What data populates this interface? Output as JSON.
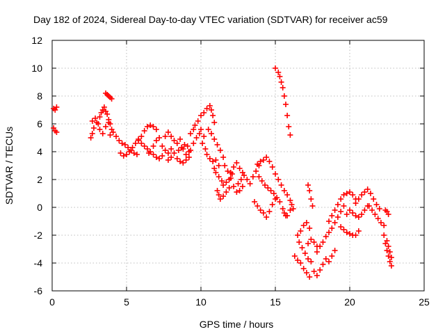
{
  "chart_data": {
    "type": "scatter",
    "title": "Day 182 of 2024, Sidereal Day-to-day VTEC variation (SDTVAR) for receiver ac59",
    "xlabel": "GPS time / hours",
    "ylabel": "SDTVAR / TECUs",
    "xlim": [
      0,
      25
    ],
    "ylim": [
      -6,
      12
    ],
    "xticks": [
      0,
      5,
      10,
      15,
      20,
      25
    ],
    "yticks": [
      -6,
      -4,
      -2,
      0,
      2,
      4,
      6,
      8,
      10,
      12
    ],
    "grid": true,
    "marker": "plus",
    "series": [
      {
        "name": "SDTVAR",
        "color": "#ff0000",
        "points": [
          [
            0.1,
            5.7
          ],
          [
            0.2,
            5.5
          ],
          [
            0.3,
            5.4
          ],
          [
            0.1,
            7.1
          ],
          [
            0.2,
            7.0
          ],
          [
            0.3,
            7.2
          ],
          [
            2.6,
            5.0
          ],
          [
            2.7,
            5.3
          ],
          [
            2.8,
            5.7
          ],
          [
            2.7,
            6.2
          ],
          [
            2.9,
            6.4
          ],
          [
            3.0,
            6.1
          ],
          [
            3.1,
            6.0
          ],
          [
            3.2,
            6.5
          ],
          [
            3.3,
            6.8
          ],
          [
            3.4,
            7.0
          ],
          [
            3.5,
            7.2
          ],
          [
            3.6,
            6.9
          ],
          [
            3.7,
            6.7
          ],
          [
            3.8,
            6.3
          ],
          [
            3.9,
            6.0
          ],
          [
            4.0,
            5.6
          ],
          [
            3.6,
            8.2
          ],
          [
            3.7,
            8.1
          ],
          [
            3.8,
            8.0
          ],
          [
            3.9,
            7.9
          ],
          [
            4.0,
            7.8
          ],
          [
            3.2,
            5.6
          ],
          [
            3.4,
            5.3
          ],
          [
            3.6,
            5.8
          ],
          [
            3.8,
            6.1
          ],
          [
            3.9,
            5.2
          ],
          [
            4.1,
            5.4
          ],
          [
            4.3,
            5.1
          ],
          [
            4.5,
            4.8
          ],
          [
            4.7,
            4.6
          ],
          [
            4.9,
            4.5
          ],
          [
            5.1,
            4.3
          ],
          [
            5.3,
            4.1
          ],
          [
            5.5,
            3.9
          ],
          [
            5.7,
            3.8
          ],
          [
            4.6,
            3.9
          ],
          [
            4.8,
            3.7
          ],
          [
            5.0,
            3.8
          ],
          [
            5.2,
            4.0
          ],
          [
            5.4,
            4.3
          ],
          [
            5.6,
            4.6
          ],
          [
            5.8,
            4.9
          ],
          [
            6.0,
            5.1
          ],
          [
            6.2,
            5.5
          ],
          [
            6.4,
            5.8
          ],
          [
            6.6,
            5.9
          ],
          [
            6.8,
            5.8
          ],
          [
            7.0,
            5.6
          ],
          [
            5.8,
            4.8
          ],
          [
            6.0,
            4.6
          ],
          [
            6.2,
            4.4
          ],
          [
            6.4,
            4.2
          ],
          [
            6.6,
            4.0
          ],
          [
            6.8,
            3.8
          ],
          [
            7.0,
            3.6
          ],
          [
            7.2,
            3.5
          ],
          [
            7.4,
            3.7
          ],
          [
            6.5,
            3.9
          ],
          [
            6.8,
            4.4
          ],
          [
            7.0,
            4.8
          ],
          [
            7.2,
            5.0
          ],
          [
            7.4,
            4.4
          ],
          [
            7.6,
            4.1
          ],
          [
            7.8,
            3.9
          ],
          [
            8.0,
            4.2
          ],
          [
            7.6,
            5.1
          ],
          [
            7.8,
            5.4
          ],
          [
            8.0,
            5.1
          ],
          [
            8.2,
            4.8
          ],
          [
            8.4,
            4.6
          ],
          [
            8.6,
            4.9
          ],
          [
            8.8,
            4.2
          ],
          [
            9.0,
            3.8
          ],
          [
            9.2,
            4.0
          ],
          [
            7.8,
            3.4
          ],
          [
            8.0,
            3.6
          ],
          [
            8.2,
            3.9
          ],
          [
            8.4,
            3.5
          ],
          [
            8.6,
            3.3
          ],
          [
            8.8,
            3.2
          ],
          [
            9.0,
            3.4
          ],
          [
            9.2,
            3.6
          ],
          [
            8.5,
            4.1
          ],
          [
            8.7,
            4.3
          ],
          [
            8.9,
            4.5
          ],
          [
            9.1,
            4.4
          ],
          [
            9.3,
            4.1
          ],
          [
            9.5,
            4.6
          ],
          [
            9.7,
            5.0
          ],
          [
            9.9,
            5.3
          ],
          [
            9.3,
            5.3
          ],
          [
            9.5,
            5.6
          ],
          [
            9.6,
            5.9
          ],
          [
            9.8,
            6.2
          ],
          [
            10.0,
            5.6
          ],
          [
            10.2,
            5.1
          ],
          [
            10.0,
            6.6
          ],
          [
            10.2,
            6.8
          ],
          [
            10.4,
            7.1
          ],
          [
            10.6,
            7.3
          ],
          [
            10.7,
            7.0
          ],
          [
            10.8,
            6.6
          ],
          [
            10.9,
            6.1
          ],
          [
            10.1,
            4.6
          ],
          [
            10.3,
            4.2
          ],
          [
            10.4,
            3.8
          ],
          [
            10.6,
            3.5
          ],
          [
            10.8,
            3.3
          ],
          [
            11.0,
            3.4
          ],
          [
            11.2,
            3.0
          ],
          [
            10.5,
            5.6
          ],
          [
            10.7,
            5.3
          ],
          [
            10.9,
            4.9
          ],
          [
            11.1,
            4.5
          ],
          [
            11.3,
            4.1
          ],
          [
            11.5,
            3.6
          ],
          [
            10.9,
            2.8
          ],
          [
            11.0,
            2.5
          ],
          [
            11.2,
            2.2
          ],
          [
            11.4,
            1.9
          ],
          [
            11.5,
            1.6
          ],
          [
            11.7,
            1.8
          ],
          [
            11.9,
            2.0
          ],
          [
            12.1,
            2.4
          ],
          [
            11.1,
            1.2
          ],
          [
            11.2,
            0.9
          ],
          [
            11.3,
            0.6
          ],
          [
            11.5,
            0.8
          ],
          [
            11.7,
            1.1
          ],
          [
            11.9,
            1.4
          ],
          [
            11.6,
            3.0
          ],
          [
            11.8,
            2.6
          ],
          [
            12.0,
            2.1
          ],
          [
            12.2,
            1.5
          ],
          [
            12.4,
            1.1
          ],
          [
            12.6,
            1.2
          ],
          [
            12.8,
            1.5
          ],
          [
            12.5,
            1.7
          ],
          [
            12.7,
            2.0
          ],
          [
            12.9,
            2.3
          ],
          [
            13.1,
            2.0
          ],
          [
            13.3,
            1.7
          ],
          [
            13.5,
            2.2
          ],
          [
            13.7,
            2.6
          ],
          [
            13.9,
            3.0
          ],
          [
            12.0,
            2.5
          ],
          [
            12.2,
            2.9
          ],
          [
            12.4,
            3.2
          ],
          [
            12.6,
            2.8
          ],
          [
            12.8,
            2.5
          ],
          [
            13.8,
            3.1
          ],
          [
            14.0,
            3.3
          ],
          [
            14.2,
            3.4
          ],
          [
            14.4,
            3.6
          ],
          [
            14.6,
            3.3
          ],
          [
            14.8,
            2.9
          ],
          [
            15.0,
            2.4
          ],
          [
            15.2,
            2.0
          ],
          [
            15.4,
            1.6
          ],
          [
            15.6,
            1.2
          ],
          [
            15.8,
            0.9
          ],
          [
            16.0,
            0.5
          ],
          [
            13.6,
            0.4
          ],
          [
            13.8,
            0.1
          ],
          [
            14.0,
            -0.2
          ],
          [
            14.2,
            -0.4
          ],
          [
            14.4,
            -0.7
          ],
          [
            14.6,
            -0.3
          ],
          [
            14.8,
            0.2
          ],
          [
            15.0,
            0.6
          ],
          [
            13.9,
            2.2
          ],
          [
            14.1,
            1.9
          ],
          [
            14.3,
            1.6
          ],
          [
            14.5,
            1.4
          ],
          [
            14.7,
            1.2
          ],
          [
            14.9,
            1.0
          ],
          [
            15.1,
            0.7
          ],
          [
            15.3,
            0.4
          ],
          [
            15.5,
            -0.1
          ],
          [
            15.7,
            -0.6
          ],
          [
            15.0,
            10.0
          ],
          [
            15.2,
            9.7
          ],
          [
            15.3,
            9.4
          ],
          [
            15.4,
            9.0
          ],
          [
            15.5,
            8.6
          ],
          [
            15.6,
            8.0
          ],
          [
            15.7,
            7.4
          ],
          [
            15.8,
            6.6
          ],
          [
            15.9,
            5.8
          ],
          [
            16.0,
            5.2
          ],
          [
            15.6,
            -0.4
          ],
          [
            15.8,
            -0.6
          ],
          [
            16.0,
            -0.2
          ],
          [
            16.1,
            0.2
          ],
          [
            16.2,
            -0.1
          ],
          [
            16.5,
            -2.0
          ],
          [
            16.7,
            -1.7
          ],
          [
            16.9,
            -1.3
          ],
          [
            17.1,
            -1.1
          ],
          [
            17.3,
            -1.5
          ],
          [
            16.3,
            -3.5
          ],
          [
            16.5,
            -3.8
          ],
          [
            16.7,
            -4.0
          ],
          [
            16.9,
            -4.4
          ],
          [
            17.1,
            -4.7
          ],
          [
            17.3,
            -5.0
          ],
          [
            16.6,
            -2.5
          ],
          [
            16.8,
            -2.9
          ],
          [
            17.0,
            -3.3
          ],
          [
            17.2,
            -3.7
          ],
          [
            17.4,
            -3.9
          ],
          [
            17.2,
            -2.6
          ],
          [
            17.4,
            -2.3
          ],
          [
            17.6,
            -2.5
          ],
          [
            17.8,
            -2.8
          ],
          [
            17.2,
            1.6
          ],
          [
            17.3,
            1.2
          ],
          [
            17.4,
            0.6
          ],
          [
            17.5,
            0.1
          ],
          [
            17.6,
            -4.6
          ],
          [
            17.8,
            -4.9
          ],
          [
            18.0,
            -4.5
          ],
          [
            18.2,
            -4.1
          ],
          [
            18.4,
            -3.7
          ],
          [
            18.6,
            -3.9
          ],
          [
            18.8,
            -3.5
          ],
          [
            19.0,
            -3.1
          ],
          [
            17.8,
            -3.2
          ],
          [
            18.0,
            -2.8
          ],
          [
            18.2,
            -2.5
          ],
          [
            18.4,
            -2.1
          ],
          [
            18.6,
            -1.8
          ],
          [
            18.8,
            -1.5
          ],
          [
            19.0,
            -1.1
          ],
          [
            19.2,
            -0.7
          ],
          [
            19.4,
            -0.3
          ],
          [
            19.6,
            0.1
          ],
          [
            18.6,
            -1.0
          ],
          [
            18.8,
            -0.6
          ],
          [
            19.0,
            -0.2
          ],
          [
            19.2,
            0.2
          ],
          [
            19.4,
            0.6
          ],
          [
            19.6,
            0.9
          ],
          [
            19.8,
            1.0
          ],
          [
            20.0,
            1.1
          ],
          [
            20.2,
            0.9
          ],
          [
            20.4,
            0.6
          ],
          [
            19.4,
            -1.4
          ],
          [
            19.6,
            -1.6
          ],
          [
            19.8,
            -1.8
          ],
          [
            20.0,
            -1.9
          ],
          [
            20.2,
            -2.0
          ],
          [
            20.4,
            -2.0
          ],
          [
            20.6,
            -1.7
          ],
          [
            19.8,
            -0.5
          ],
          [
            20.0,
            -0.2
          ],
          [
            20.2,
            -0.4
          ],
          [
            20.4,
            -0.6
          ],
          [
            20.6,
            -0.7
          ],
          [
            20.8,
            -0.5
          ],
          [
            21.0,
            -0.2
          ],
          [
            21.2,
            0.1
          ],
          [
            20.4,
            0.3
          ],
          [
            20.6,
            0.6
          ],
          [
            20.8,
            0.9
          ],
          [
            21.0,
            1.1
          ],
          [
            21.2,
            1.3
          ],
          [
            21.4,
            1.0
          ],
          [
            21.6,
            0.6
          ],
          [
            21.8,
            0.2
          ],
          [
            22.0,
            -0.1
          ],
          [
            21.3,
            0.1
          ],
          [
            21.5,
            -0.2
          ],
          [
            21.7,
            -0.5
          ],
          [
            21.9,
            -0.8
          ],
          [
            22.1,
            -1.1
          ],
          [
            22.3,
            -1.3
          ],
          [
            22.4,
            -0.2
          ],
          [
            22.5,
            -0.3
          ],
          [
            22.6,
            -0.5
          ],
          [
            22.3,
            -2.0
          ],
          [
            22.4,
            -2.6
          ],
          [
            22.5,
            -3.1
          ],
          [
            22.6,
            -3.5
          ],
          [
            22.7,
            -3.9
          ],
          [
            22.8,
            -4.2
          ],
          [
            22.5,
            -2.4
          ],
          [
            22.6,
            -2.8
          ],
          [
            22.7,
            -3.2
          ],
          [
            22.8,
            -3.6
          ]
        ]
      }
    ]
  }
}
